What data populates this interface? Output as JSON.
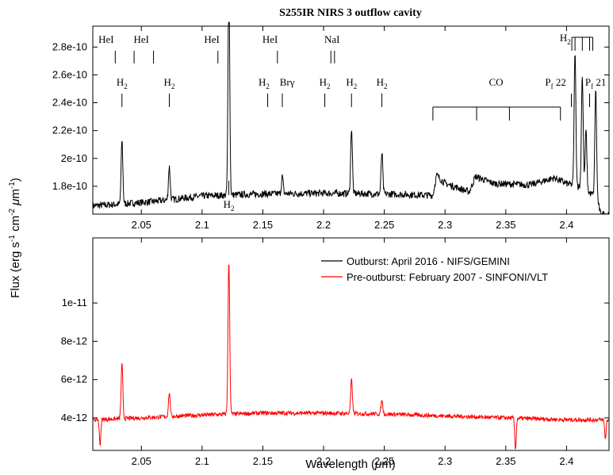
{
  "chart_data": [
    {
      "type": "line",
      "title": "S255IR NIRS 3 outflow cavity",
      "xlabel": "",
      "ylabel": "",
      "xlim": [
        2.01,
        2.435
      ],
      "ylim": [
        1.6e-10,
        2.95e-10
      ],
      "x_ticks": [
        2.05,
        2.1,
        2.15,
        2.2,
        2.25,
        2.3,
        2.35,
        2.4
      ],
      "x_tick_labels": [
        "2.05",
        "2.1",
        "2.15",
        "2.2",
        "2.25",
        "2.3",
        "2.35",
        "2.4"
      ],
      "y_ticks": [
        1.8e-10,
        2e-10,
        2.2e-10,
        2.4e-10,
        2.6e-10,
        2.8e-10
      ],
      "y_tick_labels": [
        "1.8e-10",
        "2e-10",
        "2.2e-10",
        "2.4e-10",
        "2.6e-10",
        "2.8e-10"
      ],
      "series": [
        {
          "color": "#000000",
          "baseline": [
            [
              2.01,
              1.66e-10
            ],
            [
              2.03,
              1.67e-10
            ],
            [
              2.06,
              1.69e-10
            ],
            [
              2.08,
              1.71e-10
            ],
            [
              2.1,
              1.73e-10
            ],
            [
              2.15,
              1.745e-10
            ],
            [
              2.2,
              1.75e-10
            ],
            [
              2.25,
              1.745e-10
            ],
            [
              2.29,
              1.735e-10
            ],
            [
              2.293,
              1.88e-10
            ],
            [
              2.3,
              1.82e-10
            ],
            [
              2.32,
              1.76e-10
            ],
            [
              2.325,
              1.87e-10
            ],
            [
              2.34,
              1.82e-10
            ],
            [
              2.37,
              1.81e-10
            ],
            [
              2.39,
              1.86e-10
            ],
            [
              2.4,
              1.82e-10
            ],
            [
              2.41,
              1.8e-10
            ],
            [
              2.425,
              1.72e-10
            ],
            [
              2.428,
              1.6e-10
            ]
          ],
          "peaks": [
            [
              2.034,
              2.13e-10
            ],
            [
              2.073,
              1.94e-10
            ],
            [
              2.122,
              3.3e-10
            ],
            [
              2.166,
              1.87e-10
            ],
            [
              2.223,
              2.22e-10
            ],
            [
              2.248,
              2.04e-10
            ],
            [
              2.407,
              2.77e-10
            ],
            [
              2.413,
              2.6e-10
            ],
            [
              2.416,
              2.2e-10
            ],
            [
              2.424,
              2.5e-10
            ]
          ]
        }
      ],
      "annotations": [
        {
          "label": "HeI",
          "x": 2.028
        },
        {
          "label": "HeI",
          "x": 2.043
        },
        {
          "label": "HeI",
          "x": 2.113
        },
        {
          "label": "HeI",
          "x": 2.162
        },
        {
          "label": "NaI",
          "x": 2.207
        },
        {
          "label": "H2",
          "x": 2.034
        },
        {
          "label": "H2",
          "x": 2.073
        },
        {
          "label": "H2",
          "x": 2.154
        },
        {
          "label": "Brγ",
          "x": 2.166
        },
        {
          "label": "H2",
          "x": 2.201
        },
        {
          "label": "H2",
          "x": 2.223
        },
        {
          "label": "H2",
          "x": 2.248
        },
        {
          "label": "CO",
          "x": 2.345
        },
        {
          "label": "Pf 22",
          "x": 2.404
        },
        {
          "label": "Pf 21",
          "x": 2.419
        },
        {
          "label": "H2",
          "x": 2.414
        },
        {
          "label": "H2",
          "x": 2.122
        }
      ]
    },
    {
      "type": "line",
      "title": "",
      "xlabel": "Wavelength (μm)",
      "ylabel": "",
      "xlim": [
        2.01,
        2.435
      ],
      "ylim": [
        2.3e-12,
        1.34e-11
      ],
      "x_ticks": [
        2.05,
        2.1,
        2.15,
        2.2,
        2.25,
        2.3,
        2.35,
        2.4
      ],
      "x_tick_labels": [
        "2.05",
        "2.1",
        "2.15",
        "2.2",
        "2.25",
        "2.3",
        "2.35",
        "2.4"
      ],
      "y_ticks": [
        4e-12,
        6e-12,
        8e-12,
        1e-11
      ],
      "y_tick_labels": [
        "4e-12",
        "6e-12",
        "8e-12",
        "1e-11"
      ],
      "legend": "top-right",
      "series": [
        {
          "name": "Outburst: April 2016 - NIFS/GEMINI",
          "color": "#000000",
          "legend_only": true
        },
        {
          "name": "Pre-outburst: February 2007 - SINFONI/VLT",
          "color": "#ff0000",
          "baseline": [
            [
              2.01,
              3.9e-12
            ],
            [
              2.05,
              4e-12
            ],
            [
              2.1,
              4.15e-12
            ],
            [
              2.15,
              4.25e-12
            ],
            [
              2.2,
              4.25e-12
            ],
            [
              2.25,
              4.2e-12
            ],
            [
              2.3,
              4.1e-12
            ],
            [
              2.35,
              4e-12
            ],
            [
              2.4,
              3.9e-12
            ],
            [
              2.435,
              3.9e-12
            ]
          ],
          "peaks": [
            [
              2.034,
              6.8e-12
            ],
            [
              2.073,
              5.3e-12
            ],
            [
              2.122,
              1.22e-11
            ],
            [
              2.223,
              6e-12
            ],
            [
              2.248,
              4.9e-12
            ]
          ],
          "dips": [
            [
              2.016,
              2.6e-12
            ],
            [
              2.358,
              2.35e-12
            ],
            [
              2.432,
              2.9e-12
            ]
          ]
        }
      ]
    }
  ],
  "shared_ylabel": "Flux (erg s-1 cm-2 μm-1)"
}
